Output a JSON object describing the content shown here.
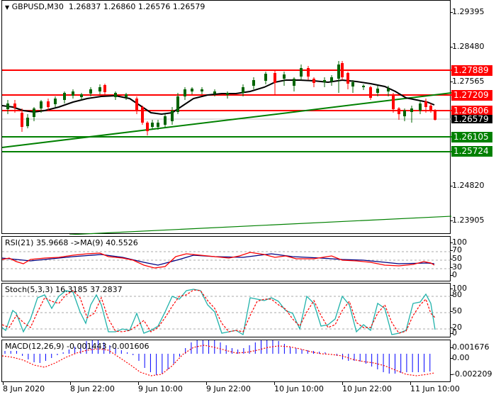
{
  "header": {
    "collapse_icon": "triangle-down-icon",
    "symbol": "GBPUSD,M30",
    "open": "1.26837",
    "high": "1.26860",
    "low": "1.26576",
    "close": "1.26579"
  },
  "price_axis": {
    "ticks": [
      "1.29395",
      "1.28480",
      "1.27565",
      "1.24820",
      "1.23905"
    ],
    "levels": [
      {
        "value": "1.27889",
        "color": "#ff0000"
      },
      {
        "value": "1.27209",
        "color": "#ff0000"
      },
      {
        "value": "1.26806",
        "color": "#ff0000"
      },
      {
        "value": "1.26579",
        "color": "#000000"
      },
      {
        "value": "1.26105",
        "color": "#008000"
      },
      {
        "value": "1.25724",
        "color": "#008000"
      }
    ]
  },
  "rsi": {
    "label": "RSI(21) 35.9668  ->MA(9) 40.5526",
    "ticks": [
      "100",
      "70",
      "50",
      "30",
      "0"
    ]
  },
  "stoch": {
    "label": "Stoch(5,3,3) 16.3185 37.2837",
    "ticks": [
      "100",
      "80",
      "50",
      "20",
      "0"
    ]
  },
  "macd": {
    "label": "MACD(12,26,9) -0.001443 -0.001606",
    "ticks": [
      "0.001676",
      "0.00",
      "-0.002209"
    ]
  },
  "time_axis": [
    "8 Jun 2020",
    "8 Jun 22:00",
    "9 Jun 10:00",
    "9 Jun 22:00",
    "10 Jun 10:00",
    "10 Jun 22:00",
    "11 Jun 10:00"
  ],
  "colors": {
    "resistance": "#ff0000",
    "support": "#008000",
    "bull_candle": "#006400",
    "bear_candle": "#ff0000",
    "ma_line": "#000000",
    "rsi_line": "#ff0000",
    "rsi_ma": "#000080",
    "stoch_main": "#20b2aa",
    "stoch_signal": "#ff0000",
    "macd_hist": "#0000ff",
    "macd_signal": "#ff0000"
  },
  "chart_data": [
    {
      "type": "candlestick",
      "title": "GBPUSD,M30",
      "ohlc_last": {
        "open": 1.26837,
        "high": 1.2686,
        "low": 1.26576,
        "close": 1.26579
      },
      "ylim": [
        1.2355,
        1.2975
      ],
      "y_ticks": [
        1.29395,
        1.2848,
        1.27565,
        1.2482,
        1.23905
      ],
      "x_ticks": [
        "8 Jun 2020",
        "8 Jun 22:00",
        "9 Jun 10:00",
        "9 Jun 22:00",
        "10 Jun 10:00",
        "10 Jun 22:00",
        "11 Jun 10:00"
      ],
      "horizontal_levels": {
        "resistance": [
          1.27889,
          1.27209,
          1.26806
        ],
        "current_price": 1.26579,
        "support": [
          1.26105,
          1.25724
        ]
      },
      "trendlines": [
        {
          "color": "green",
          "from_price": 1.2567,
          "to_price": 1.2725,
          "description": "rising support trendline"
        },
        {
          "color": "green",
          "from_price": 1.238,
          "to_price": 1.2395,
          "description": "lower rising trendline"
        }
      ],
      "moving_average": "black line, peaks ~1.2790 on 10 Jun, ~1.2700 at end"
    },
    {
      "type": "line",
      "title": "RSI(21)",
      "values_last": {
        "rsi": 35.9668,
        "ma9": 40.5526
      },
      "ylim": [
        0,
        100
      ],
      "levels": [
        70,
        50,
        30
      ]
    },
    {
      "type": "line",
      "title": "Stoch(5,3,3)",
      "values_last": {
        "main": 16.3185,
        "signal": 37.2837
      },
      "ylim": [
        0,
        100
      ],
      "levels": [
        80,
        50,
        20
      ]
    },
    {
      "type": "bar",
      "title": "MACD(12,26,9)",
      "values_last": {
        "macd": -0.001443,
        "signal": -0.001606
      },
      "ylim": [
        -0.002209,
        0.001676
      ]
    }
  ]
}
